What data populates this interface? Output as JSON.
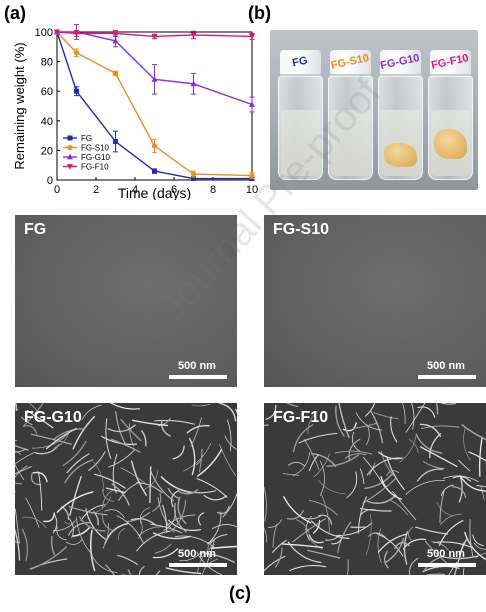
{
  "labels": {
    "a": "(a)",
    "b": "(b)",
    "c": "(c)"
  },
  "chart_data": {
    "type": "line",
    "xlabel": "Time (days)",
    "ylabel": "Remaining weight (%)",
    "xlim": [
      0,
      10
    ],
    "ylim": [
      0,
      100
    ],
    "xticks": [
      0,
      2,
      4,
      6,
      8,
      10
    ],
    "yticks": [
      0,
      20,
      40,
      60,
      80,
      100
    ],
    "legend_position": "bottom-left",
    "series": [
      {
        "name": "FG",
        "color": "#1f2db5",
        "marker": "square",
        "x": [
          0,
          1,
          3,
          5,
          7,
          10
        ],
        "y": [
          100,
          60,
          26,
          6,
          1,
          1
        ],
        "err": [
          0,
          3,
          7,
          1.5,
          0.5,
          0.5
        ]
      },
      {
        "name": "FG-S10",
        "color": "#f28c1a",
        "marker": "circle",
        "x": [
          0,
          1,
          3,
          5,
          7,
          10
        ],
        "y": [
          100,
          86,
          72,
          23,
          4,
          3
        ],
        "err": [
          0,
          2.5,
          1.5,
          4.5,
          2,
          2
        ]
      },
      {
        "name": "FG-G10",
        "color": "#8a2be2",
        "marker": "triangle",
        "x": [
          0,
          1,
          3,
          5,
          7,
          10
        ],
        "y": [
          100,
          100,
          94,
          68,
          65,
          51
        ],
        "err": [
          0,
          5,
          4,
          10,
          7,
          5
        ]
      },
      {
        "name": "FG-F10",
        "color": "#e0157a",
        "marker": "triangle-down",
        "x": [
          0,
          1,
          3,
          5,
          7,
          10
        ],
        "y": [
          100,
          99,
          99,
          97,
          98,
          97
        ],
        "err": [
          0,
          2,
          2,
          1.5,
          2.5,
          2
        ]
      }
    ]
  },
  "photo": {
    "vials": [
      {
        "label": "FG",
        "color": "#1f2db5",
        "gel": false
      },
      {
        "label": "FG-S10",
        "color": "#f28c1a",
        "gel": false
      },
      {
        "label": "FG-G10",
        "color": "#8a2be2",
        "gel": true
      },
      {
        "label": "FG-F10",
        "color": "#e0157a",
        "gel": true
      }
    ]
  },
  "sem": [
    {
      "name": "FG",
      "scale": "500 nm",
      "texture": "smooth"
    },
    {
      "name": "FG-S10",
      "scale": "500 nm",
      "texture": "smooth"
    },
    {
      "name": "FG-G10",
      "scale": "500 nm",
      "texture": "fiber"
    },
    {
      "name": "FG-F10",
      "scale": "500 nm",
      "texture": "fiber"
    }
  ],
  "watermark": "Journal Pre-proof"
}
